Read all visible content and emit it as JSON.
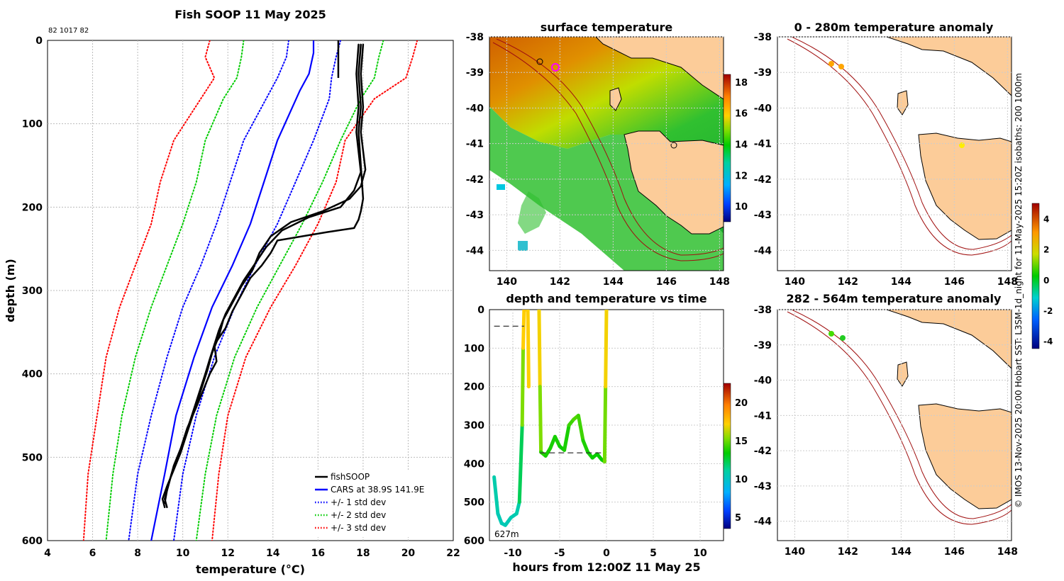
{
  "main_profile": {
    "title": "Fish SOOP 11 May 2025",
    "id_label": "82 1017 82",
    "xlabel": "temperature (°C)",
    "ylabel": "depth (m)",
    "xticks": [
      "4",
      "6",
      "8",
      "10",
      "12",
      "14",
      "16",
      "18",
      "20",
      "22"
    ],
    "yticks": [
      "0",
      "100",
      "200",
      "300",
      "400",
      "500",
      "600"
    ],
    "legend": [
      {
        "label": "fishSOOP",
        "color": "#000000",
        "dash": "solid"
      },
      {
        "label": "CARS at 38.9S 141.9E",
        "color": "#0000ff",
        "dash": "solid"
      },
      {
        "label": "+/- 1 std dev",
        "color": "#0000ff",
        "dash": "dot"
      },
      {
        "label": "+/- 2 std dev",
        "color": "#00cc00",
        "dash": "dot"
      },
      {
        "label": "+/- 3 std dev",
        "color": "#ff0000",
        "dash": "dot"
      }
    ]
  },
  "sst_map": {
    "title": "surface temperature",
    "yticks": [
      "-38",
      "-39",
      "-40",
      "-41",
      "-42",
      "-43",
      "-44"
    ],
    "xticks": [
      "140",
      "142",
      "144",
      "146",
      "148"
    ],
    "cbar_ticks": [
      "18",
      "16",
      "14",
      "12",
      "10"
    ]
  },
  "time_panel": {
    "title": "depth and temperature vs time",
    "xlabel": "hours from 12:00Z 11 May 25",
    "yticks": [
      "0",
      "100",
      "200",
      "300",
      "400",
      "500",
      "600"
    ],
    "xticks": [
      "-10",
      "-5",
      "0",
      "5",
      "10"
    ],
    "annotation": "627m",
    "cbar_ticks": [
      "20",
      "15",
      "10",
      "5"
    ]
  },
  "anom_map_1": {
    "title": "0 - 280m temperature anomaly",
    "yticks": [
      "-38",
      "-39",
      "-40",
      "-41",
      "-42",
      "-43",
      "-44"
    ],
    "xticks": [
      "140",
      "142",
      "144",
      "146",
      "148"
    ]
  },
  "anom_map_2": {
    "title": "282 - 564m temperature anomaly",
    "yticks": [
      "-38",
      "-39",
      "-40",
      "-41",
      "-42",
      "-43",
      "-44"
    ],
    "xticks": [
      "140",
      "142",
      "144",
      "146",
      "148"
    ]
  },
  "anom_cbar": {
    "ticks": [
      "4",
      "2",
      "0",
      "-2",
      "-4"
    ]
  },
  "credit": "© IMOS 13-Nov-2025 20:00 Hobart SST: L3SM-1d_night for 11-May-2025 15:20Z isobaths: 200  1000m",
  "chart_data": [
    {
      "type": "line",
      "name": "temperature-profile",
      "title": "Fish SOOP 11 May 2025",
      "xlabel": "temperature (°C)",
      "ylabel": "depth (m)",
      "xlim": [
        4,
        22
      ],
      "ylim": [
        600,
        0
      ],
      "grid": true,
      "legend_position": "bottom-right",
      "series": [
        {
          "name": "CARS at 38.9S 141.9E",
          "style": "solid",
          "x": [
            15.8,
            15.8,
            15.6,
            15.2,
            14.2,
            13.6,
            13.0,
            12.2,
            11.3,
            10.5,
            9.7,
            9.2,
            8.6
          ],
          "y": [
            0,
            15,
            40,
            60,
            120,
            170,
            220,
            270,
            320,
            380,
            450,
            520,
            600
          ]
        },
        {
          "name": "+1 std dev",
          "style": "dot",
          "x": [
            17.0,
            16.8,
            16.6,
            16.5,
            15.8,
            15.0,
            14.2,
            13.2,
            12.3,
            11.4,
            10.6,
            10.0,
            9.6
          ],
          "y": [
            0,
            20,
            45,
            70,
            120,
            170,
            220,
            270,
            320,
            380,
            450,
            520,
            600
          ]
        },
        {
          "name": "-1 std dev",
          "style": "dot",
          "x": [
            14.7,
            14.6,
            14.2,
            13.7,
            12.7,
            12.1,
            11.5,
            10.8,
            10.0,
            9.3,
            8.6,
            8.0,
            7.6
          ],
          "y": [
            0,
            20,
            45,
            70,
            120,
            170,
            220,
            270,
            320,
            380,
            450,
            520,
            600
          ]
        },
        {
          "name": "+2 std dev",
          "style": "dot",
          "x": [
            18.9,
            18.7,
            18.5,
            17.9,
            17.0,
            16.2,
            15.3,
            14.3,
            13.3,
            12.3,
            11.5,
            11.0,
            10.6
          ],
          "y": [
            0,
            20,
            45,
            70,
            120,
            170,
            220,
            270,
            320,
            380,
            450,
            520,
            600
          ]
        },
        {
          "name": "-2 std dev",
          "style": "dot",
          "x": [
            12.7,
            12.6,
            12.4,
            11.8,
            11.0,
            10.6,
            10.0,
            9.3,
            8.6,
            7.9,
            7.3,
            6.9,
            6.6
          ],
          "y": [
            0,
            20,
            45,
            70,
            120,
            170,
            220,
            270,
            320,
            380,
            450,
            520,
            600
          ]
        },
        {
          "name": "+3 std dev",
          "style": "dot",
          "x": [
            20.4,
            20.2,
            19.9,
            18.5,
            17.2,
            16.8,
            16.0,
            15.0,
            13.9,
            12.8,
            12.0,
            11.6,
            11.3
          ],
          "y": [
            0,
            20,
            45,
            70,
            120,
            170,
            220,
            270,
            320,
            380,
            450,
            520,
            600
          ]
        },
        {
          "name": "-3 std dev",
          "style": "dot",
          "x": [
            11.2,
            11.0,
            11.4,
            10.8,
            9.6,
            9.0,
            8.6,
            7.9,
            7.2,
            6.6,
            6.2,
            5.8,
            5.6
          ],
          "y": [
            0,
            20,
            45,
            70,
            120,
            170,
            220,
            270,
            320,
            380,
            450,
            520,
            600
          ]
        },
        {
          "name": "fishSOOP",
          "style": "solid",
          "x": [
            17.9,
            17.8,
            17.9,
            17.8,
            17.9,
            18.0,
            17.9,
            17.8,
            17.6,
            16.4,
            14.2,
            13.9,
            13.5,
            13.0,
            12.6,
            12.2,
            11.9,
            11.4,
            11.5,
            11.2,
            10.9,
            10.6,
            10.2,
            9.9,
            9.6,
            9.4,
            9.2,
            9.3
          ],
          "y": [
            5,
            40,
            80,
            110,
            150,
            190,
            205,
            215,
            225,
            230,
            240,
            255,
            270,
            285,
            305,
            325,
            345,
            365,
            385,
            400,
            420,
            440,
            465,
            490,
            510,
            530,
            550,
            560
          ]
        },
        {
          "name": "fishSOOP",
          "style": "solid",
          "x": [
            18.0,
            17.9,
            18.0,
            17.9,
            18.1,
            17.9,
            17.4,
            16.2,
            14.8,
            13.9,
            13.4,
            13.1,
            12.6,
            12.2,
            11.8,
            11.6,
            11.3,
            11.1,
            10.8,
            10.5,
            10.2,
            9.9,
            9.6,
            9.3,
            9.1,
            9.2
          ],
          "y": [
            5,
            40,
            80,
            110,
            155,
            175,
            190,
            205,
            218,
            235,
            255,
            275,
            295,
            315,
            335,
            355,
            375,
            395,
            420,
            445,
            470,
            495,
            515,
            535,
            550,
            560
          ]
        },
        {
          "name": "fishSOOP",
          "style": "solid",
          "x": [
            17.8,
            17.7,
            17.8,
            17.7,
            17.9,
            17.6,
            17.0,
            15.6,
            14.4,
            13.7,
            13.2,
            12.7,
            12.3,
            11.9,
            11.6,
            11.4,
            11.2,
            11.0,
            10.7,
            10.4,
            10.1,
            9.8,
            9.5,
            9.3,
            9.2
          ],
          "y": [
            5,
            40,
            80,
            110,
            158,
            180,
            200,
            212,
            228,
            248,
            268,
            288,
            308,
            328,
            348,
            365,
            382,
            400,
            425,
            450,
            475,
            500,
            520,
            540,
            555
          ]
        }
      ]
    },
    {
      "type": "line",
      "name": "depth-vs-time",
      "title": "depth and temperature vs time",
      "xlabel": "hours from 12:00Z 11 May 25",
      "xlim": [
        -12.5,
        12.5
      ],
      "ylim": [
        600,
        0
      ],
      "colorbar_range": [
        4,
        22
      ],
      "annotation": "627m",
      "points": [
        {
          "t": -12.0,
          "d": 435,
          "temp": 11
        },
        {
          "t": -11.6,
          "d": 530,
          "temp": 10.5
        },
        {
          "t": -11.2,
          "d": 555,
          "temp": 10.5
        },
        {
          "t": -10.8,
          "d": 560,
          "temp": 10.5
        },
        {
          "t": -10.2,
          "d": 540,
          "temp": 10.5
        },
        {
          "t": -9.6,
          "d": 530,
          "temp": 10.6
        },
        {
          "t": -9.3,
          "d": 500,
          "temp": 10.8
        },
        {
          "t": -9.0,
          "d": 300,
          "temp": 13.5
        },
        {
          "t": -8.9,
          "d": 100,
          "temp": 17
        },
        {
          "t": -8.8,
          "d": 0,
          "temp": 17.5
        },
        {
          "t": -8.4,
          "d": 0,
          "temp": 17.5
        },
        {
          "t": -8.3,
          "d": 200,
          "temp": 17.0
        },
        {
          "t": -7.2,
          "d": 0,
          "temp": 17.5
        },
        {
          "t": -7.1,
          "d": 200,
          "temp": 16.5
        },
        {
          "t": -7.0,
          "d": 370,
          "temp": 14
        },
        {
          "t": -6.5,
          "d": 380,
          "temp": 13.8
        },
        {
          "t": -6.0,
          "d": 360,
          "temp": 13.6
        },
        {
          "t": -5.5,
          "d": 330,
          "temp": 13.8
        },
        {
          "t": -5.0,
          "d": 355,
          "temp": 13.6
        },
        {
          "t": -4.5,
          "d": 365,
          "temp": 13.5
        },
        {
          "t": -4.0,
          "d": 300,
          "temp": 14
        },
        {
          "t": -3.5,
          "d": 285,
          "temp": 14.5
        },
        {
          "t": -3.0,
          "d": 275,
          "temp": 14.6
        },
        {
          "t": -2.5,
          "d": 340,
          "temp": 14
        },
        {
          "t": -2.0,
          "d": 370,
          "temp": 13.6
        },
        {
          "t": -1.5,
          "d": 385,
          "temp": 13.6
        },
        {
          "t": -1.0,
          "d": 375,
          "temp": 13.5
        },
        {
          "t": -0.5,
          "d": 390,
          "temp": 13.4
        },
        {
          "t": -0.2,
          "d": 395,
          "temp": 13.6
        },
        {
          "t": -0.1,
          "d": 200,
          "temp": 16.5
        },
        {
          "t": 0.0,
          "d": 0,
          "temp": 17.5
        }
      ],
      "reference_lines": [
        {
          "x": [
            -12.0,
            -8.8
          ],
          "y": 43
        },
        {
          "x": [
            -7.1,
            -0.2
          ],
          "y": 372
        }
      ]
    }
  ]
}
